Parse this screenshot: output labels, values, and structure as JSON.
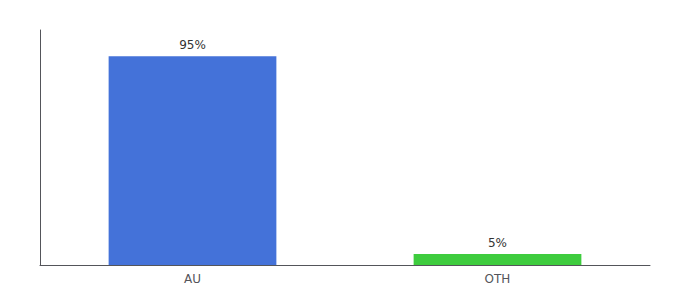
{
  "chart_data": {
    "type": "bar",
    "categories": [
      "AU",
      "OTH"
    ],
    "values": [
      95,
      5
    ],
    "value_labels": [
      "95%",
      "5%"
    ],
    "colors": [
      "#4472d9",
      "#3ecc3e"
    ],
    "ylim": [
      0,
      107
    ],
    "data_labels": true,
    "tick_labels": "x",
    "grid": false
  }
}
